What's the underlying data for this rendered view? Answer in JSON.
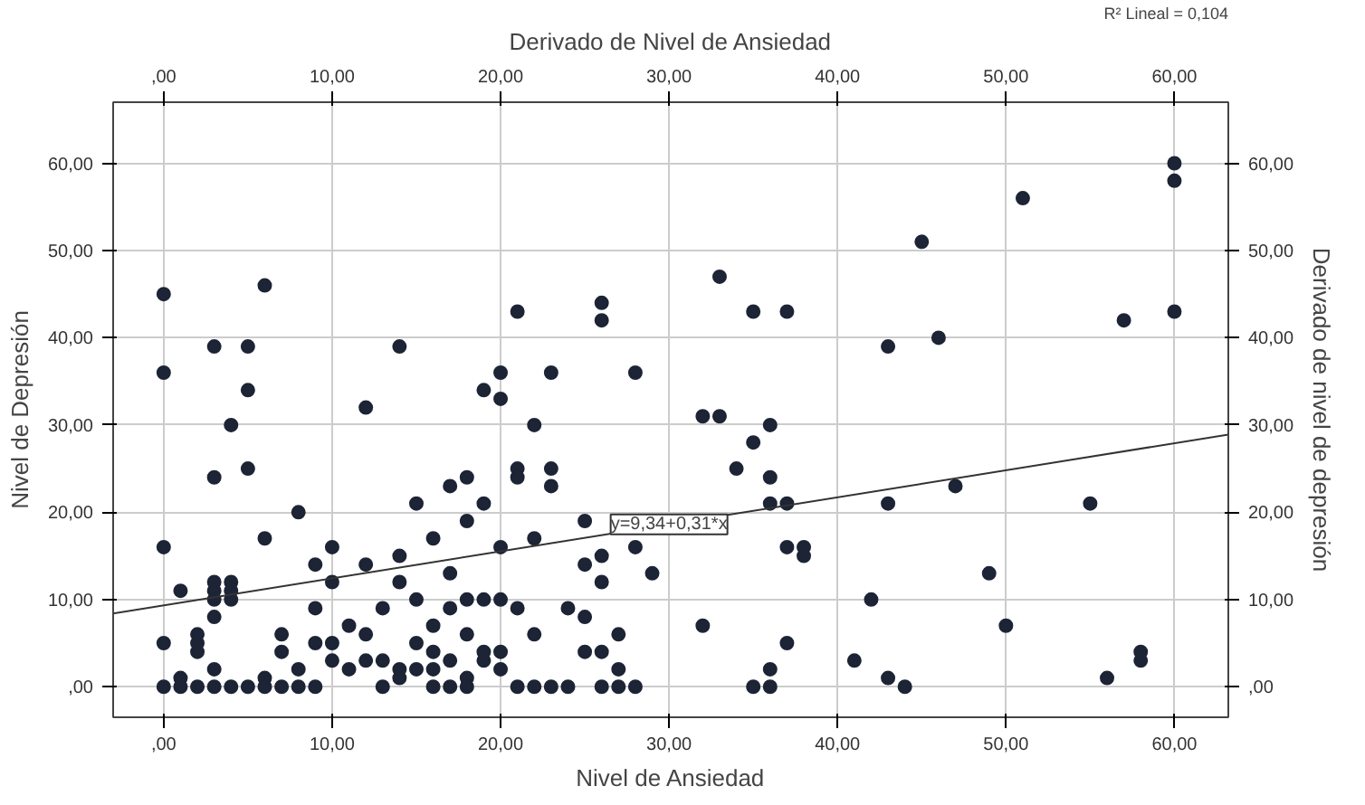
{
  "chart_data": {
    "type": "scatter",
    "xlabel": "Nivel de Ansiedad",
    "ylabel": "Nivel de Depresión",
    "x2label": "Derivado de Nivel de Ansiedad",
    "y2label": "Derivado de nivel de depresión",
    "xlim": [
      -3,
      63.2
    ],
    "ylim": [
      -3.5,
      67
    ],
    "x2lim": [
      -3,
      63.2
    ],
    "y2lim": [
      -3.5,
      67
    ],
    "xticks": [
      {
        "value": 0,
        "label": ",00"
      },
      {
        "value": 10,
        "label": "10,00"
      },
      {
        "value": 20,
        "label": "20,00"
      },
      {
        "value": 30,
        "label": "30,00"
      },
      {
        "value": 40,
        "label": "40,00"
      },
      {
        "value": 50,
        "label": "50,00"
      },
      {
        "value": 60,
        "label": "60,00"
      }
    ],
    "x2ticks": [
      {
        "value": 0,
        "label": ",00"
      },
      {
        "value": 10,
        "label": "10,00"
      },
      {
        "value": 20,
        "label": "20,00"
      },
      {
        "value": 30,
        "label": "30,00"
      },
      {
        "value": 40,
        "label": "40,00"
      },
      {
        "value": 50,
        "label": "50,00"
      },
      {
        "value": 60,
        "label": "60,00"
      }
    ],
    "yticks": [
      {
        "value": 0,
        "label": ",00"
      },
      {
        "value": 10,
        "label": "10,00"
      },
      {
        "value": 20,
        "label": "20,00"
      },
      {
        "value": 30,
        "label": "30,00"
      },
      {
        "value": 40,
        "label": "40,00"
      },
      {
        "value": 50,
        "label": "50,00"
      },
      {
        "value": 60,
        "label": "60,00"
      }
    ],
    "y2ticks": [
      {
        "value": 0,
        "label": ",00"
      },
      {
        "value": 10,
        "label": "10,00"
      },
      {
        "value": 20,
        "label": "20,00"
      },
      {
        "value": 30,
        "label": "30,00"
      },
      {
        "value": 40,
        "label": "40,00"
      },
      {
        "value": 50,
        "label": "50,00"
      },
      {
        "value": 60,
        "label": "60,00"
      }
    ],
    "grid": true,
    "marker": "circle",
    "annotations": [
      {
        "text": "y=9,34+0,31*x",
        "x": 30,
        "y": 18.6
      },
      "R² Lineal = 0,104"
    ],
    "series": [
      {
        "color": "#1c2436",
        "x": [
          0,
          0,
          0,
          0,
          0,
          1,
          1,
          1,
          2,
          2,
          2,
          2,
          3,
          3,
          3,
          3,
          3,
          3,
          3,
          3,
          4,
          4,
          4,
          4,
          4,
          5,
          5,
          5,
          5,
          6,
          6,
          6,
          6,
          7,
          7,
          7,
          8,
          8,
          8,
          9,
          9,
          9,
          9,
          10,
          10,
          10,
          10,
          11,
          11,
          12,
          12,
          12,
          12,
          13,
          13,
          13,
          14,
          14,
          14,
          14,
          14,
          15,
          15,
          15,
          15,
          16,
          16,
          16,
          16,
          16,
          17,
          17,
          17,
          17,
          17,
          18,
          18,
          18,
          18,
          18,
          18,
          19,
          19,
          19,
          19,
          19,
          20,
          20,
          20,
          20,
          20,
          20,
          21,
          21,
          21,
          21,
          21,
          22,
          22,
          22,
          22,
          23,
          23,
          23,
          23,
          24,
          24,
          25,
          25,
          25,
          25,
          26,
          26,
          26,
          26,
          26,
          26,
          27,
          27,
          27,
          28,
          28,
          28,
          29,
          32,
          32,
          33,
          33,
          34,
          35,
          35,
          35,
          36,
          36,
          36,
          36,
          36,
          37,
          37,
          37,
          37,
          38,
          38,
          41,
          42,
          43,
          43,
          43,
          44,
          45,
          46,
          47,
          49,
          50,
          51,
          55,
          56,
          57,
          58,
          58,
          60,
          60,
          60
        ],
        "values": [
          45,
          36,
          16,
          5,
          0,
          11,
          0,
          1,
          5,
          6,
          0,
          4,
          39,
          24,
          12,
          10,
          8,
          2,
          0,
          11,
          30,
          12,
          10,
          0,
          11,
          39,
          34,
          25,
          0,
          46,
          17,
          1,
          0,
          6,
          0,
          4,
          20,
          0,
          2,
          14,
          9,
          5,
          0,
          16,
          12,
          5,
          3,
          2,
          7,
          32,
          14,
          6,
          3,
          9,
          3,
          0,
          39,
          15,
          12,
          2,
          1,
          21,
          10,
          2,
          5,
          17,
          7,
          4,
          0,
          2,
          23,
          13,
          9,
          3,
          0,
          24,
          19,
          6,
          1,
          0,
          10,
          34,
          21,
          10,
          4,
          3,
          36,
          33,
          16,
          10,
          4,
          2,
          43,
          25,
          24,
          9,
          0,
          30,
          17,
          0,
          6,
          36,
          25,
          23,
          0,
          9,
          0,
          19,
          14,
          8,
          4,
          44,
          42,
          15,
          12,
          4,
          0,
          6,
          2,
          0,
          36,
          16,
          0,
          13,
          31,
          7,
          47,
          31,
          25,
          43,
          28,
          0,
          30,
          24,
          21,
          0,
          2,
          43,
          21,
          16,
          5,
          16,
          15,
          3,
          10,
          39,
          21,
          1,
          0,
          51,
          40,
          23,
          13,
          7,
          56,
          21,
          1,
          42,
          4,
          3,
          60,
          58,
          43
        ]
      },
      {
        "type": "line",
        "marker": "none",
        "color": "#333333",
        "x": [
          -3,
          63.2
        ],
        "values": [
          8.4,
          28.9
        ]
      }
    ]
  }
}
